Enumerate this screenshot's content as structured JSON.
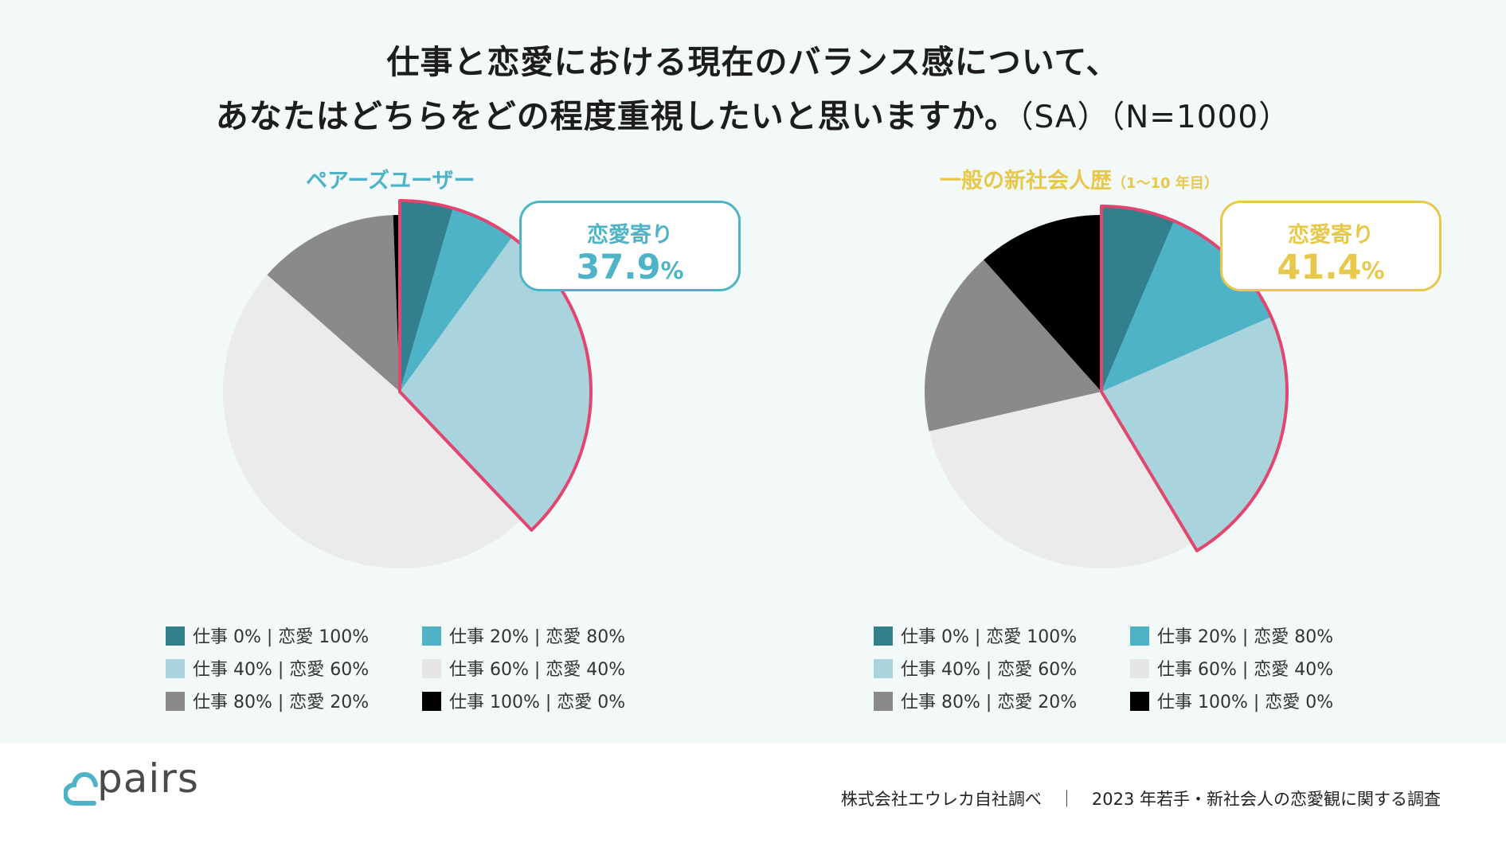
{
  "title": {
    "line1": "仕事と恋愛における現在のバランス感について、",
    "line2": "あなたはどちらをどの程度重視したいと思いますか。",
    "line2_sub": "（SA）（N=1000）"
  },
  "colors": {
    "c0": "#32808e",
    "c1": "#4fb3c8",
    "c2": "#a9d4dd",
    "c3": "#ebebeb",
    "c4": "#8a8a8a",
    "c5": "#000000",
    "highlight": "#e2466e",
    "pairs_accent": "#4fb3c8",
    "general_accent": "#e8c84a"
  },
  "chart_data": [
    {
      "type": "pie",
      "title": "ペアーズユーザー",
      "categories": [
        "仕事0%｜恋愛100%",
        "仕事20%｜恋愛80%",
        "仕事40%｜恋愛60%",
        "仕事60%｜恋愛40%",
        "仕事80%｜恋愛20%",
        "仕事100%｜恋愛0%"
      ],
      "values": [
        4.5,
        5.5,
        27.9,
        48.6,
        12.9,
        0.6
      ],
      "highlight_label": "恋愛寄り",
      "highlight_value": "37.9",
      "highlight_unit": "%"
    },
    {
      "type": "pie",
      "title": "一般の新社会人歴",
      "title_note": "（1～10 年目）",
      "categories": [
        "仕事0%｜恋愛100%",
        "仕事20%｜恋愛80%",
        "仕事40%｜恋愛60%",
        "仕事60%｜恋愛40%",
        "仕事80%｜恋愛20%",
        "仕事100%｜恋愛0%"
      ],
      "values": [
        6.4,
        12.0,
        23.0,
        30.0,
        17.0,
        11.6
      ],
      "highlight_label": "恋愛寄り",
      "highlight_value": "41.4",
      "highlight_unit": "%"
    }
  ],
  "legend": [
    "仕事 0%  |  恋愛 100%",
    "仕事 20%  |  恋愛 80%",
    "仕事 40%  |  恋愛 60%",
    "仕事 60%  |  恋愛 40%",
    "仕事 80%  |  恋愛 20%",
    "仕事 100%  |  恋愛 0%"
  ],
  "footer": {
    "brand": "pairs",
    "source": "株式会社エウレカ自社調べ　｜　2023 年若手・新社会人の恋愛観に関する調査"
  }
}
